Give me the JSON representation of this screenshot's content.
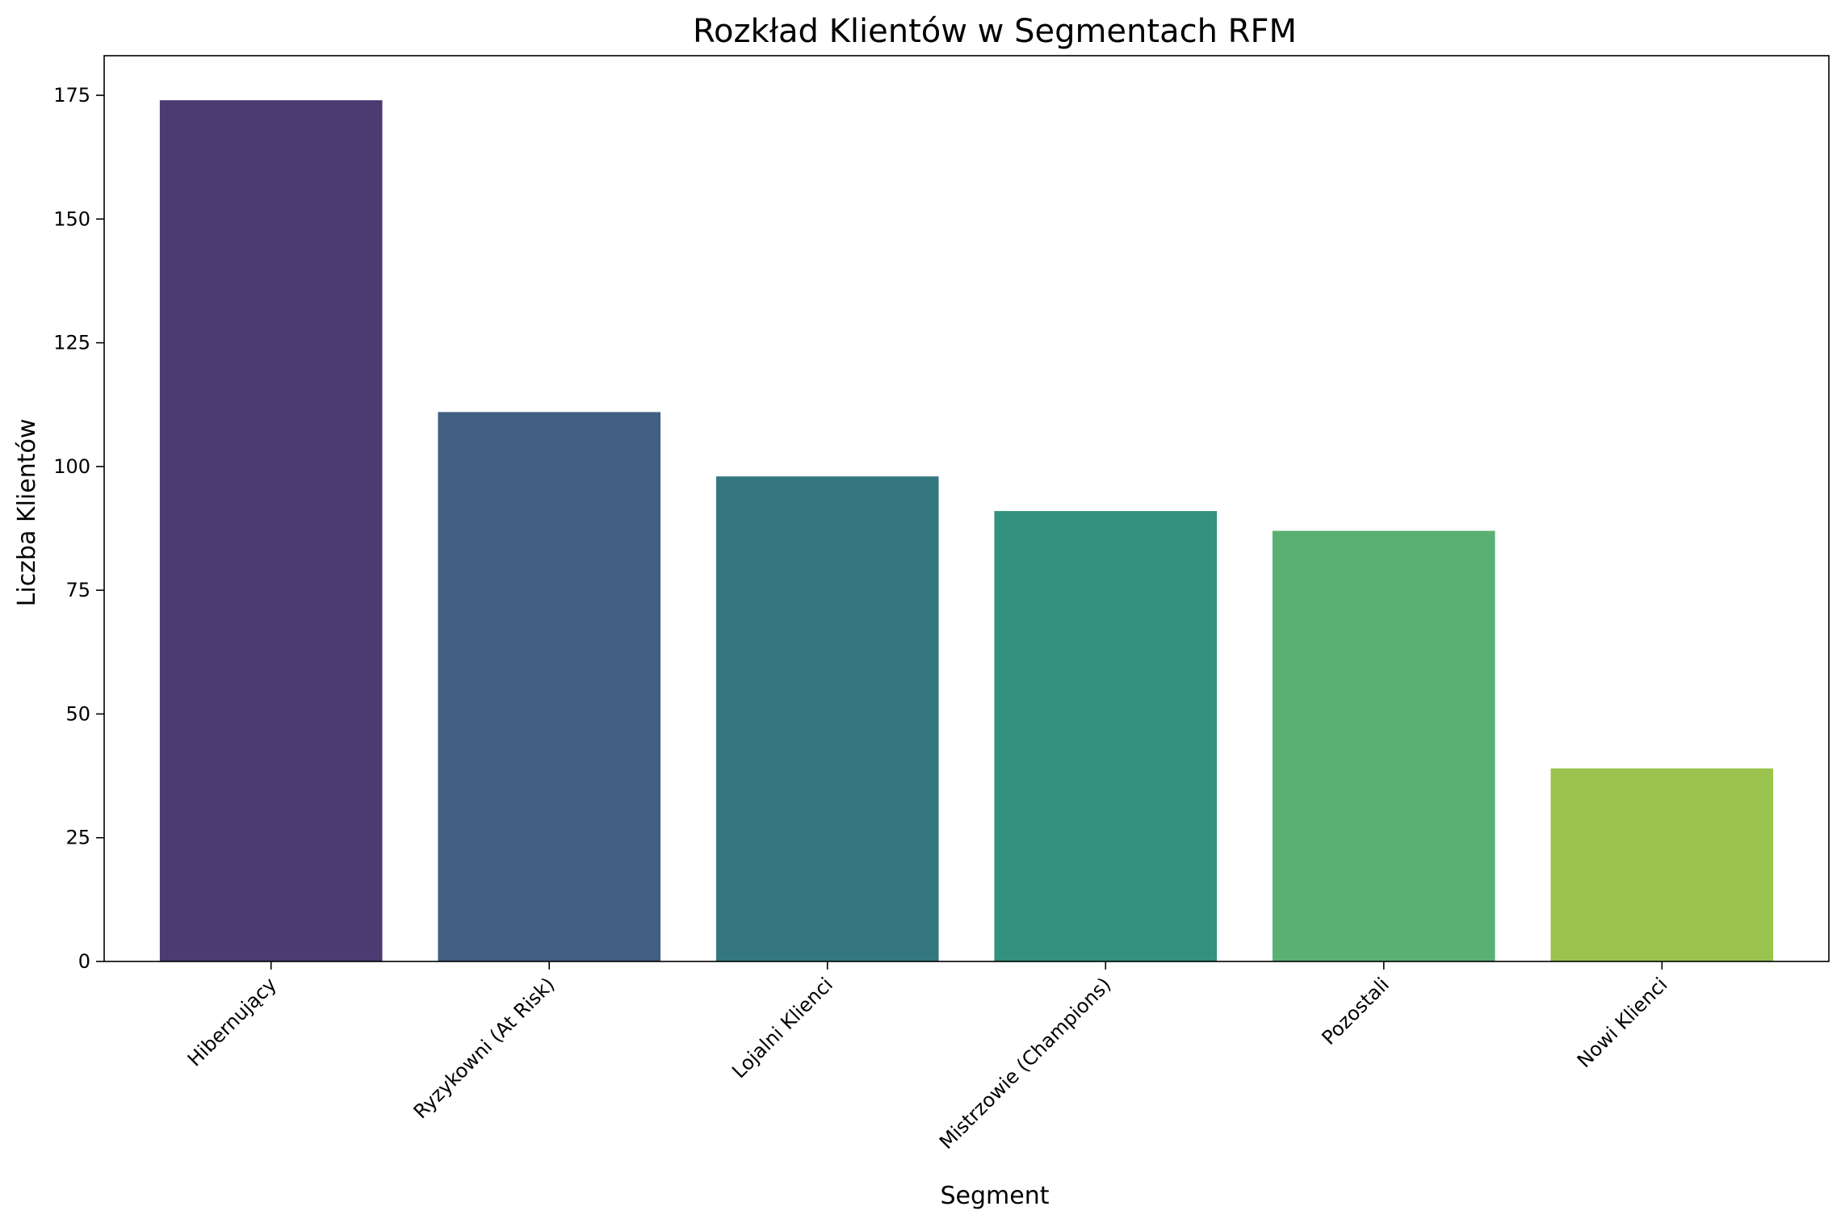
{
  "chart_data": {
    "type": "bar",
    "title": "Rozkład Klientów w Segmentach RFM",
    "xlabel": "Segment",
    "ylabel": "Liczba Klientów",
    "categories": [
      "Hibernujący",
      "Ryzykowni (At Risk)",
      "Lojalni Klienci",
      "Mistrzowie (Champions)",
      "Pozostali",
      "Nowi Klienci"
    ],
    "values": [
      174,
      111,
      98,
      91,
      87,
      39
    ],
    "colors": [
      "#4a3c73",
      "#415f80",
      "#357780",
      "#32917f",
      "#5ab072",
      "#9bc44e"
    ],
    "ylim": [
      0,
      183
    ],
    "yticks": [
      0,
      25,
      50,
      75,
      100,
      125,
      150,
      175
    ],
    "grid": false,
    "legend": "none"
  }
}
